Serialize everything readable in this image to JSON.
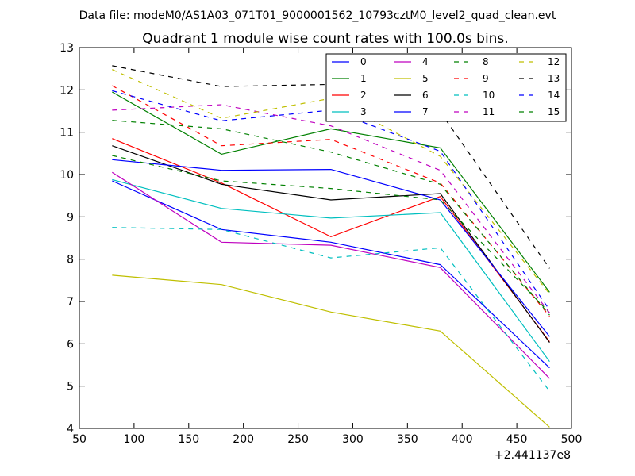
{
  "header": {
    "data_file": "Data file: modeM0/AS1A03_071T01_9000001562_10793cztM0_level2_quad_clean.evt"
  },
  "chart_data": {
    "type": "line",
    "title": "Quadrant 1 module wise count rates with 100.0s bins.",
    "xlabel": "",
    "ylabel": "",
    "x_offset_label": "+2.441137e8",
    "xlim": [
      50,
      500
    ],
    "ylim": [
      4,
      13
    ],
    "xticks": [
      "50",
      "100",
      "150",
      "200",
      "250",
      "300",
      "350",
      "400",
      "450",
      "500"
    ],
    "yticks": [
      "4",
      "5",
      "6",
      "7",
      "8",
      "9",
      "10",
      "11",
      "12",
      "13"
    ],
    "x": [
      80,
      180,
      280,
      380,
      480
    ],
    "grid": false,
    "legend_position": "top-right",
    "series": [
      {
        "name": "0",
        "color": "#0000ff",
        "style": "solid",
        "values": [
          9.85,
          8.7,
          8.4,
          7.87,
          5.43
        ]
      },
      {
        "name": "1",
        "color": "#008000",
        "style": "solid",
        "values": [
          11.95,
          10.48,
          11.08,
          10.63,
          7.22
        ]
      },
      {
        "name": "2",
        "color": "#ff0000",
        "style": "solid",
        "values": [
          10.85,
          9.8,
          8.53,
          9.48,
          6.05
        ]
      },
      {
        "name": "3",
        "color": "#00bfbf",
        "style": "solid",
        "values": [
          9.88,
          9.2,
          8.97,
          9.1,
          5.58
        ]
      },
      {
        "name": "4",
        "color": "#bf00bf",
        "style": "solid",
        "values": [
          10.05,
          8.4,
          8.33,
          7.8,
          5.18
        ]
      },
      {
        "name": "5",
        "color": "#bfbf00",
        "style": "solid",
        "values": [
          7.62,
          7.4,
          6.75,
          6.3,
          4.03
        ]
      },
      {
        "name": "6",
        "color": "#000000",
        "style": "solid",
        "values": [
          10.68,
          9.77,
          9.4,
          9.55,
          6.03
        ]
      },
      {
        "name": "7",
        "color": "#0000ff",
        "style": "solid",
        "values": [
          10.35,
          10.1,
          10.12,
          9.4,
          6.17
        ]
      },
      {
        "name": "8",
        "color": "#008000",
        "style": "dashed",
        "values": [
          10.45,
          9.85,
          9.67,
          9.4,
          6.73
        ]
      },
      {
        "name": "9",
        "color": "#ff0000",
        "style": "dashed",
        "values": [
          12.1,
          10.68,
          10.83,
          9.8,
          6.65
        ]
      },
      {
        "name": "10",
        "color": "#00bfbf",
        "style": "dashed",
        "values": [
          8.75,
          8.7,
          8.03,
          8.27,
          4.88
        ]
      },
      {
        "name": "11",
        "color": "#bf00bf",
        "style": "dashed",
        "values": [
          11.52,
          11.65,
          11.15,
          10.1,
          6.73
        ]
      },
      {
        "name": "12",
        "color": "#bfbf00",
        "style": "dashed",
        "values": [
          12.48,
          11.33,
          11.8,
          10.43,
          7.18
        ]
      },
      {
        "name": "13",
        "color": "#000000",
        "style": "dashed",
        "values": [
          12.57,
          12.08,
          12.13,
          11.48,
          7.78
        ]
      },
      {
        "name": "14",
        "color": "#0000ff",
        "style": "dashed",
        "values": [
          11.98,
          11.27,
          11.52,
          10.55,
          6.8
        ]
      },
      {
        "name": "15",
        "color": "#008000",
        "style": "dashed",
        "values": [
          11.28,
          11.08,
          10.53,
          9.77,
          6.68
        ]
      }
    ]
  }
}
